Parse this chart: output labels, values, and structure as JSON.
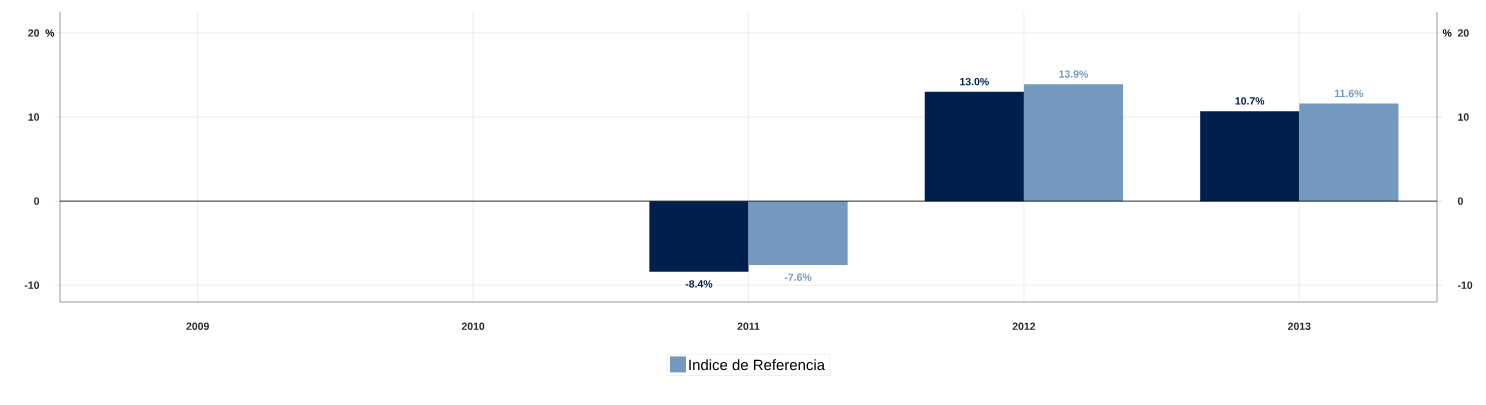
{
  "chart_data": {
    "type": "bar",
    "categories": [
      "2009",
      "2010",
      "2011",
      "2012",
      "2013"
    ],
    "series": [
      {
        "color": "#001f4d",
        "values": [
          null,
          null,
          -8.4,
          13.0,
          10.7
        ],
        "value_labels": [
          null,
          null,
          "-8.4%",
          "13.0%",
          "10.7%"
        ]
      },
      {
        "name": "Indice de Referencia",
        "color": "#7399bf",
        "values": [
          null,
          null,
          -7.6,
          13.9,
          11.6
        ],
        "value_labels": [
          null,
          null,
          "-7.6%",
          "13.9%",
          "11.6%"
        ]
      }
    ],
    "ylabel": "%",
    "y2label": "%",
    "ylim": [
      -12,
      22.5
    ],
    "yticks": [
      -10,
      0,
      10,
      20
    ],
    "y2lim": [
      -12,
      22.5
    ],
    "y2ticks": [
      -10,
      0,
      10,
      20
    ],
    "grid": true,
    "legend": "bottom"
  }
}
